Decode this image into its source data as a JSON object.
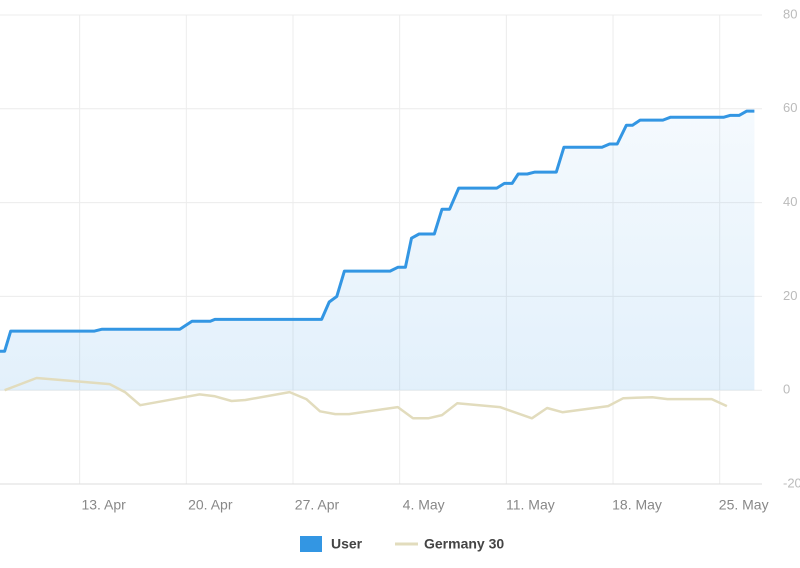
{
  "chart_data": {
    "type": "line",
    "xlim": [
      6.2,
      56.2
    ],
    "ylim": [
      -20,
      80
    ],
    "yticks": [
      -20,
      0,
      20,
      40,
      60,
      80
    ],
    "xticks": [
      {
        "value": 13,
        "label": "13. Apr"
      },
      {
        "value": 20,
        "label": "20. Apr"
      },
      {
        "value": 27,
        "label": "27. Apr"
      },
      {
        "value": 34,
        "label": "4. May"
      },
      {
        "value": 41,
        "label": "11. May"
      },
      {
        "value": 48,
        "label": "18. May"
      },
      {
        "value": 55,
        "label": "25. May"
      }
    ],
    "grid": true,
    "legend": "bottom",
    "series": [
      {
        "name": "User",
        "color": "#3396e3",
        "area": true,
        "x": [
          6.2,
          6.5,
          6.9,
          12.4,
          12.9,
          18.0,
          18.8,
          20.0,
          20.3,
          27.3,
          27.8,
          28.3,
          28.8,
          31.8,
          32.3,
          32.8,
          33.2,
          33.7,
          34.7,
          35.2,
          35.7,
          36.3,
          38.8,
          39.3,
          39.8,
          40.2,
          40.8,
          41.3,
          42.7,
          43.2,
          45.7,
          46.2,
          46.7,
          47.3,
          47.7,
          48.2,
          49.7,
          50.2,
          53.7,
          54.1,
          54.7,
          55.2,
          55.7
        ],
        "values": [
          8.3,
          8.3,
          12.6,
          12.6,
          13.0,
          13.0,
          14.7,
          14.7,
          15.1,
          15.1,
          18.8,
          20.0,
          25.4,
          25.4,
          26.2,
          26.2,
          32.4,
          33.3,
          33.3,
          38.6,
          38.6,
          43.1,
          43.1,
          44.1,
          44.1,
          46.1,
          46.1,
          46.5,
          46.5,
          51.8,
          51.8,
          52.5,
          52.5,
          56.5,
          56.5,
          57.6,
          57.6,
          58.2,
          58.2,
          58.6,
          58.6,
          59.5,
          59.5
        ]
      },
      {
        "name": "Germany 30",
        "color": "#e2dcbd",
        "area": false,
        "x": [
          6.5,
          7.4,
          8.6,
          13.4,
          14.4,
          15.4,
          18.3,
          19.3,
          20.3,
          21.4,
          22.3,
          25.2,
          26.3,
          27.2,
          28.2,
          29.1,
          32.3,
          33.3,
          34.3,
          35.2,
          36.2,
          39.0,
          41.1,
          42.1,
          43.1,
          46.1,
          47.1,
          49.0,
          50.0,
          52.9,
          53.9
        ],
        "values": [
          0,
          1.1,
          2.6,
          1.3,
          -0.4,
          -3.2,
          -1.5,
          -0.9,
          -1.3,
          -2.3,
          -2.1,
          -0.4,
          -1.9,
          -4.5,
          -5.1,
          -5.1,
          -3.6,
          -6.0,
          -6.0,
          -5.3,
          -2.8,
          -3.6,
          -6.0,
          -3.8,
          -4.7,
          -3.4,
          -1.7,
          -1.5,
          -1.9,
          -1.9,
          -3.4
        ]
      }
    ]
  }
}
